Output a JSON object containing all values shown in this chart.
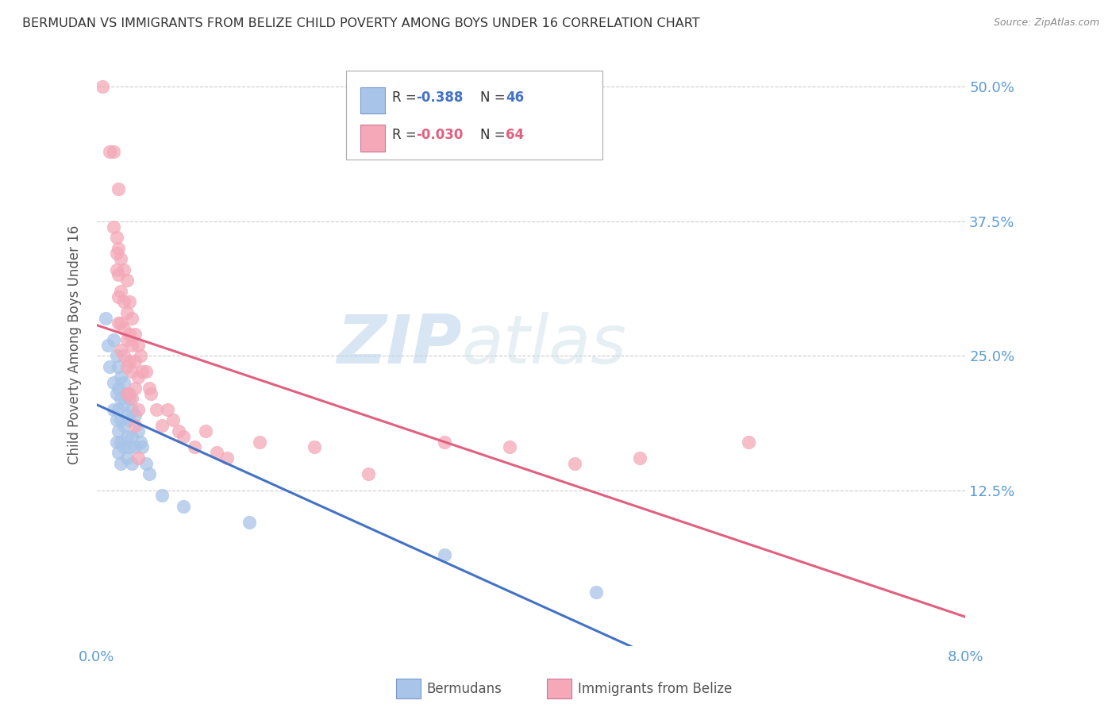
{
  "title": "BERMUDAN VS IMMIGRANTS FROM BELIZE CHILD POVERTY AMONG BOYS UNDER 16 CORRELATION CHART",
  "source": "Source: ZipAtlas.com",
  "ylabel": "Child Poverty Among Boys Under 16",
  "ytick_labels": [
    "50.0%",
    "37.5%",
    "25.0%",
    "12.5%"
  ],
  "ytick_values": [
    0.5,
    0.375,
    0.25,
    0.125
  ],
  "xmin": 0.0,
  "xmax": 0.08,
  "ymin": -0.02,
  "ymax": 0.54,
  "bermudan_color": "#a8c4e8",
  "belize_color": "#f4a8b8",
  "bermudan_line_color": "#4472c4",
  "belize_line_color": "#e06080",
  "watermark_color": "#d0e4f4",
  "background_color": "#ffffff",
  "grid_color": "#cccccc",
  "axis_label_color": "#5b9bd5",
  "title_color": "#333333",
  "ylabel_color": "#555555",
  "source_color": "#888888",
  "bermudan_points": [
    [
      0.0008,
      0.285
    ],
    [
      0.001,
      0.26
    ],
    [
      0.0012,
      0.24
    ],
    [
      0.0015,
      0.265
    ],
    [
      0.0015,
      0.225
    ],
    [
      0.0015,
      0.2
    ],
    [
      0.0018,
      0.25
    ],
    [
      0.0018,
      0.215
    ],
    [
      0.0018,
      0.19
    ],
    [
      0.0018,
      0.17
    ],
    [
      0.002,
      0.24
    ],
    [
      0.002,
      0.22
    ],
    [
      0.002,
      0.2
    ],
    [
      0.002,
      0.18
    ],
    [
      0.002,
      0.16
    ],
    [
      0.0022,
      0.23
    ],
    [
      0.0022,
      0.21
    ],
    [
      0.0022,
      0.19
    ],
    [
      0.0022,
      0.17
    ],
    [
      0.0022,
      0.15
    ],
    [
      0.0025,
      0.225
    ],
    [
      0.0025,
      0.205
    ],
    [
      0.0025,
      0.185
    ],
    [
      0.0025,
      0.165
    ],
    [
      0.0028,
      0.215
    ],
    [
      0.0028,
      0.195
    ],
    [
      0.0028,
      0.175
    ],
    [
      0.0028,
      0.155
    ],
    [
      0.003,
      0.21
    ],
    [
      0.003,
      0.19
    ],
    [
      0.003,
      0.165
    ],
    [
      0.0032,
      0.2
    ],
    [
      0.0032,
      0.175
    ],
    [
      0.0032,
      0.15
    ],
    [
      0.0035,
      0.195
    ],
    [
      0.0035,
      0.165
    ],
    [
      0.0038,
      0.18
    ],
    [
      0.004,
      0.17
    ],
    [
      0.0042,
      0.165
    ],
    [
      0.0045,
      0.15
    ],
    [
      0.0048,
      0.14
    ],
    [
      0.006,
      0.12
    ],
    [
      0.008,
      0.11
    ],
    [
      0.014,
      0.095
    ],
    [
      0.032,
      0.065
    ],
    [
      0.046,
      0.03
    ]
  ],
  "belize_points": [
    [
      0.0005,
      0.5
    ],
    [
      0.0012,
      0.44
    ],
    [
      0.0015,
      0.44
    ],
    [
      0.0015,
      0.37
    ],
    [
      0.0018,
      0.36
    ],
    [
      0.0018,
      0.345
    ],
    [
      0.0018,
      0.33
    ],
    [
      0.002,
      0.405
    ],
    [
      0.002,
      0.35
    ],
    [
      0.002,
      0.325
    ],
    [
      0.002,
      0.305
    ],
    [
      0.002,
      0.28
    ],
    [
      0.0022,
      0.34
    ],
    [
      0.0022,
      0.31
    ],
    [
      0.0022,
      0.28
    ],
    [
      0.0022,
      0.255
    ],
    [
      0.0025,
      0.33
    ],
    [
      0.0025,
      0.3
    ],
    [
      0.0025,
      0.275
    ],
    [
      0.0025,
      0.25
    ],
    [
      0.0028,
      0.32
    ],
    [
      0.0028,
      0.29
    ],
    [
      0.0028,
      0.265
    ],
    [
      0.0028,
      0.24
    ],
    [
      0.0028,
      0.215
    ],
    [
      0.003,
      0.3
    ],
    [
      0.003,
      0.27
    ],
    [
      0.003,
      0.245
    ],
    [
      0.003,
      0.215
    ],
    [
      0.0032,
      0.285
    ],
    [
      0.0032,
      0.26
    ],
    [
      0.0032,
      0.235
    ],
    [
      0.0032,
      0.21
    ],
    [
      0.0035,
      0.27
    ],
    [
      0.0035,
      0.245
    ],
    [
      0.0035,
      0.22
    ],
    [
      0.0035,
      0.185
    ],
    [
      0.0038,
      0.26
    ],
    [
      0.0038,
      0.23
    ],
    [
      0.0038,
      0.2
    ],
    [
      0.0038,
      0.155
    ],
    [
      0.004,
      0.25
    ],
    [
      0.0042,
      0.235
    ],
    [
      0.0045,
      0.235
    ],
    [
      0.0048,
      0.22
    ],
    [
      0.005,
      0.215
    ],
    [
      0.0055,
      0.2
    ],
    [
      0.006,
      0.185
    ],
    [
      0.0065,
      0.2
    ],
    [
      0.007,
      0.19
    ],
    [
      0.0075,
      0.18
    ],
    [
      0.008,
      0.175
    ],
    [
      0.009,
      0.165
    ],
    [
      0.01,
      0.18
    ],
    [
      0.011,
      0.16
    ],
    [
      0.012,
      0.155
    ],
    [
      0.015,
      0.17
    ],
    [
      0.02,
      0.165
    ],
    [
      0.025,
      0.14
    ],
    [
      0.032,
      0.17
    ],
    [
      0.038,
      0.165
    ],
    [
      0.044,
      0.15
    ],
    [
      0.05,
      0.155
    ],
    [
      0.06,
      0.17
    ]
  ]
}
